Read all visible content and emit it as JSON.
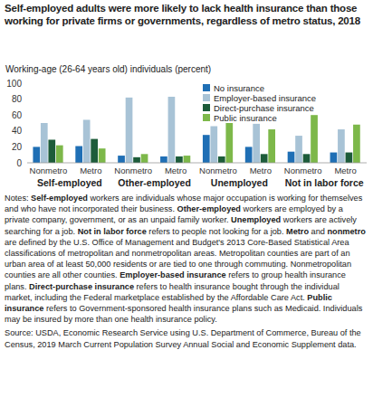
{
  "chart_data": {
    "type": "bar",
    "title": "Self-employed adults were more likely to lack health insurance than those working for private firms or governments, regardless of metro status, 2018",
    "subtitle": "Working-age (26-64 years old) individuals (percent)",
    "categories": [
      "Nonmetro",
      "Metro",
      "Nonmetro",
      "Metro",
      "Nonmetro",
      "Metro",
      "Nonmetro",
      "Metro"
    ],
    "groups": [
      "Self-employed",
      "Other-employed",
      "Unemployed",
      "Not in labor force"
    ],
    "series": [
      {
        "name": "No insurance",
        "color": "#1f6fb5",
        "values": [
          20,
          21,
          9,
          8,
          35,
          20,
          14,
          13
        ]
      },
      {
        "name": "Employer-based insurance",
        "color": "#a8c3d6",
        "values": [
          50,
          54,
          82,
          83,
          46,
          49,
          34,
          42
        ]
      },
      {
        "name": "Direct-purchase insurance",
        "color": "#1d5c3a",
        "values": [
          29,
          30,
          7,
          8,
          8,
          11,
          11,
          13
        ]
      },
      {
        "name": "Public insurance",
        "color": "#7db84a",
        "values": [
          22,
          18,
          11,
          9,
          50,
          42,
          60,
          48
        ]
      }
    ],
    "ylim": [
      0,
      100
    ],
    "yticks": [
      0,
      20,
      40,
      60,
      80,
      100
    ],
    "grid": false,
    "legend": "top-right",
    "notes": [
      "Notes: ",
      "Self-employed",
      " workers are individuals whose major occupation is working for themselves and who have not incorporated their business. ",
      "Other-employed",
      " workers are employed by a private company, government, or as an unpaid family worker. ",
      "Unemployed",
      " workers are actively searching for a job. ",
      "Not in labor force",
      " refers to people not looking for a job. ",
      "Metro",
      " and ",
      "nonmetro",
      " are defined by the U.S. Office of Management and Budget's 2013 Core-Based Statistical Area classifications of metropolitan and nonmetropolitan areas. Metropolitan counties are part of an urban area of at least 50,000 residents or are tied to one through commuting. Nonmetropolitan counties are all other counties. ",
      "Employer-based insurance",
      " refers to group health insurance plans. ",
      "Direct-purchase insurance",
      " refers to health insurance bought through the individual market, including the Federal marketplace established by the Affordable Care Act. ",
      "Public insurance",
      " refers to Government-sponsored health insurance plans such as Medicaid. Individuals may be insured by more than one health insurance policy."
    ],
    "source": "Source: USDA, Economic Research Service using U.S. Department of Commerce, Bureau of the Census, 2019 March Current Population Survey Annual Social and Economic Supplement data."
  }
}
